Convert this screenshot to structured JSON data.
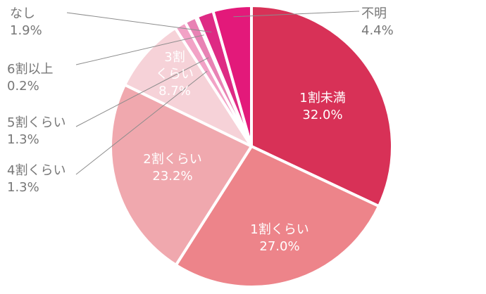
{
  "chart_data": {
    "type": "pie",
    "title": "",
    "start_angle_deg": 0,
    "direction": "clockwise",
    "slices": [
      {
        "label": "1割未満",
        "value": 32.0,
        "value_text": "32.0%",
        "color": "#d83157",
        "label_inside": true,
        "label_color": "#ffffff"
      },
      {
        "label": "1割くらい",
        "value": 27.0,
        "value_text": "27.0%",
        "color": "#ed848a",
        "label_inside": true,
        "label_color": "#ffffff"
      },
      {
        "label": "2割くらい",
        "value": 23.2,
        "value_text": "23.2%",
        "color": "#f0a8ae",
        "label_inside": true,
        "label_color": "#ffffff"
      },
      {
        "label": "3割くらい",
        "value": 8.7,
        "value_text": "8.7%",
        "color": "#f6d2d8",
        "label_inside": true,
        "label_color": "#ffffff"
      },
      {
        "label": "4割くらい",
        "value": 1.3,
        "value_text": "1.3%",
        "color": "#f2a2c6",
        "label_inside": false,
        "label_color": "#777777"
      },
      {
        "label": "5割くらい",
        "value": 1.3,
        "value_text": "1.3%",
        "color": "#e882b4",
        "label_inside": false,
        "label_color": "#777777"
      },
      {
        "label": "6割以上",
        "value": 0.2,
        "value_text": "0.2%",
        "color": "#e25ea6",
        "label_inside": false,
        "label_color": "#777777"
      },
      {
        "label": "なし",
        "value": 1.9,
        "value_text": "1.9%",
        "color": "#de2a84",
        "label_inside": false,
        "label_color": "#777777"
      },
      {
        "label": "不明",
        "value": 4.4,
        "value_text": "4.4%",
        "color": "#e3197a",
        "label_inside": false,
        "label_color": "#777777"
      }
    ]
  }
}
